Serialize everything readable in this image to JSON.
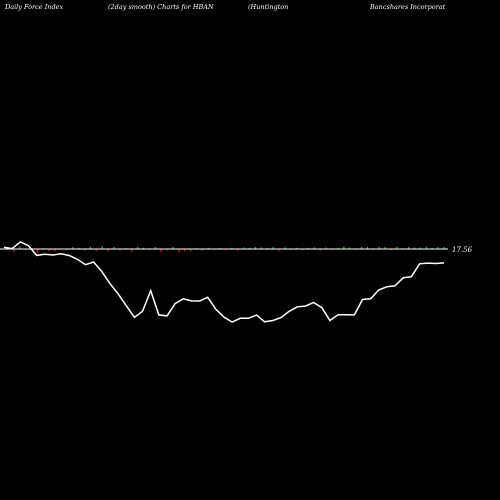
{
  "header": {
    "title1": "Daily Force  Index",
    "title2": "(2day smooth) Charts for HBAN",
    "title3": "(Huntington",
    "title4": "Bancshares Incorporat"
  },
  "colors": {
    "background": "#000000",
    "line": "#ffffff",
    "baseline": "#ffffff",
    "positive_bar": "#00cc00",
    "negative_bar": "#ff0000"
  },
  "chart_data": {
    "type": "line",
    "title": "",
    "xlabel": "",
    "ylabel": "",
    "last_value_label": "17.56",
    "series": [
      {
        "values": [
          0.0,
          -0.8,
          0.6,
          -0.4,
          0.3,
          -0.9,
          0.0,
          -0.5,
          -0.5,
          -0.2,
          -0.3,
          0.5,
          0.3,
          -0.4,
          0.6,
          -0.5,
          0.7,
          -0.6,
          0.5,
          -0.4,
          0.2,
          -0.7,
          0.5,
          0.3,
          -0.3,
          0.5,
          -0.8,
          -0.3,
          0.5,
          -0.9,
          -0.5,
          -0.6,
          0.2,
          -0.4,
          0.3,
          -0.3,
          0.3,
          -0.3,
          0.3,
          -0.5,
          0.4,
          0.3,
          0.5,
          0.4,
          0.3,
          0.5,
          -0.5,
          0.4,
          -0.3,
          0.3,
          -0.3,
          0.3,
          0.4,
          -0.4,
          0.4,
          -0.3,
          0.3,
          0.6,
          0.4,
          -0.3,
          0.5,
          0.5,
          -0.3,
          0.6,
          0.5,
          -0.3,
          0.6,
          0.2,
          0.5,
          0.4,
          0.4,
          0.6,
          0.3,
          0.5,
          0.5
        ]
      },
      {
        "values": [
          26.8,
          26.0,
          29.9,
          27.8,
          22.0,
          22.7,
          22.2,
          22.9,
          21.9,
          19.7,
          16.5,
          18.1,
          12.5,
          5.3,
          -0.7,
          -7.7,
          -14.6,
          -11.1,
          1.1,
          -13.2,
          -13.8,
          -6.5,
          -3.7,
          -4.9,
          -5.0,
          -2.8,
          -9.9,
          -14.5,
          -17.4,
          -15.2,
          -15.2,
          -13.3,
          -17.3,
          -16.5,
          -14.8,
          -11.1,
          -8.4,
          -8.0,
          -5.9,
          -8.9,
          -16.5,
          -13.1,
          -13.1,
          -13.2,
          -4.1,
          -3.7,
          1.6,
          3.5,
          4.0,
          8.8,
          9.4,
          17.0,
          17.4,
          17.2,
          17.56
        ]
      }
    ]
  }
}
